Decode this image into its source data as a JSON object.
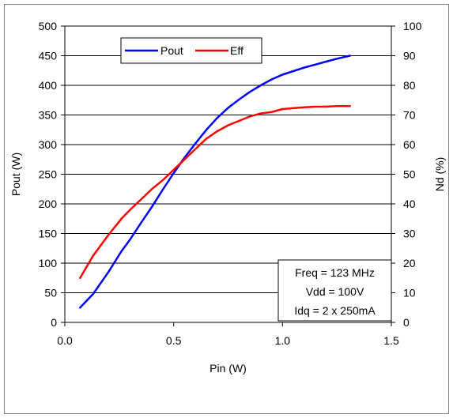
{
  "chart_data": {
    "type": "line",
    "title": "",
    "xlabel": "Pin (W)",
    "ylabel": "Pout (W)",
    "y2label": "Nd (%)",
    "xlim": [
      0,
      1.5
    ],
    "ylim": [
      0,
      500
    ],
    "y2lim": [
      0,
      100
    ],
    "x_ticks": [
      "0.0",
      "0.5",
      "1.0",
      "1.5"
    ],
    "x_tick_values": [
      0,
      0.5,
      1.0,
      1.5
    ],
    "y_ticks": [
      "0",
      "50",
      "100",
      "150",
      "200",
      "250",
      "300",
      "350",
      "400",
      "450",
      "500"
    ],
    "y2_ticks": [
      "0",
      "10",
      "20",
      "30",
      "40",
      "50",
      "60",
      "70",
      "80",
      "90",
      "100"
    ],
    "grid": "horizontal",
    "legend_position": "top-left",
    "series": [
      {
        "name": "Pout",
        "axis": "left",
        "color": "#0000ff",
        "x": [
          0.07,
          0.13,
          0.2,
          0.26,
          0.3,
          0.35,
          0.4,
          0.45,
          0.5,
          0.55,
          0.6,
          0.65,
          0.7,
          0.75,
          0.8,
          0.85,
          0.9,
          0.95,
          1.0,
          1.05,
          1.1,
          1.15,
          1.2,
          1.25,
          1.31
        ],
        "values": [
          25,
          48,
          85,
          120,
          140,
          168,
          195,
          224,
          252,
          278,
          302,
          325,
          345,
          362,
          376,
          389,
          400,
          410,
          418,
          424,
          430,
          435,
          440,
          445,
          450
        ]
      },
      {
        "name": "Eff",
        "axis": "right",
        "color": "#ff0000",
        "x": [
          0.07,
          0.13,
          0.2,
          0.26,
          0.3,
          0.35,
          0.4,
          0.45,
          0.5,
          0.55,
          0.6,
          0.65,
          0.7,
          0.75,
          0.8,
          0.85,
          0.9,
          0.95,
          1.0,
          1.05,
          1.1,
          1.15,
          1.2,
          1.25,
          1.31
        ],
        "values": [
          15,
          22.5,
          29.5,
          35,
          38,
          41.5,
          45,
          48,
          51.5,
          55,
          58.5,
          62,
          64.5,
          66.5,
          68,
          69.5,
          70.5,
          71,
          72,
          72.3,
          72.6,
          72.8,
          72.8,
          73,
          73
        ]
      }
    ],
    "annotation": [
      "Freq = 123 MHz",
      "Vdd = 100V",
      "Idq = 2 x 250mA"
    ]
  }
}
